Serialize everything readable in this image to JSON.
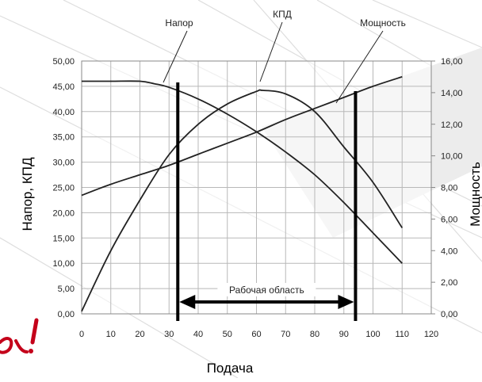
{
  "chart_data": {
    "type": "line",
    "xlabel": "Подача",
    "ylabel_left": "Напор, КПД",
    "ylabel_right": "Мощность",
    "x_ticks": [
      "0",
      "10",
      "20",
      "30",
      "40",
      "50",
      "60",
      "70",
      "80",
      "90",
      "100",
      "110",
      "120"
    ],
    "y_left_ticks": [
      "0,00",
      "5,00",
      "10,00",
      "15,00",
      "20,00",
      "25,00",
      "30,00",
      "35,00",
      "40,00",
      "45,00",
      "50,00"
    ],
    "y_right_ticks": [
      "0,00",
      "2,00",
      "4,00",
      "6,00",
      "8,00",
      "10,00",
      "12,00",
      "14,00",
      "16,00"
    ],
    "xlim": [
      0,
      120
    ],
    "ylim_left": [
      0,
      50
    ],
    "ylim_right": [
      0,
      16
    ],
    "grid": true,
    "series": [
      {
        "name": "Напор",
        "axis": "left",
        "x": [
          0,
          10,
          20,
          25,
          30,
          40,
          50,
          60,
          70,
          80,
          90,
          100,
          110
        ],
        "y": [
          46,
          46,
          46,
          45.5,
          44.8,
          42.5,
          39.5,
          36.0,
          32.0,
          27.5,
          22.0,
          16.0,
          10.0
        ]
      },
      {
        "name": "КПД",
        "axis": "left",
        "x": [
          0,
          10,
          20,
          30,
          40,
          50,
          60,
          62,
          70,
          80,
          90,
          100,
          110
        ],
        "y": [
          0.5,
          12.5,
          22.5,
          31.5,
          37.5,
          41.5,
          44.0,
          44.2,
          43.5,
          40.0,
          33.0,
          26.0,
          17.0
        ]
      },
      {
        "name": "Мощность",
        "axis": "right",
        "x": [
          0,
          10,
          20,
          30,
          40,
          50,
          60,
          70,
          80,
          90,
          100,
          110
        ],
        "y": [
          7.5,
          8.2,
          8.8,
          9.4,
          10.1,
          10.8,
          11.5,
          12.3,
          13.0,
          13.7,
          14.4,
          15.0
        ]
      }
    ],
    "annotations": {
      "pointer_labels": [
        "Напор",
        "КПД",
        "Мощность"
      ],
      "working_range": {
        "label": "Рабочая область",
        "x_start": 33,
        "x_end": 94
      }
    }
  },
  "colors": {
    "background": "#ffffff",
    "plot_background": "#ffffff",
    "grid": "#b8b8b8",
    "curve": "#222222",
    "range_line": "#000000",
    "text": "#222222",
    "watermark": "#dedede",
    "callout": "#c4001a"
  }
}
